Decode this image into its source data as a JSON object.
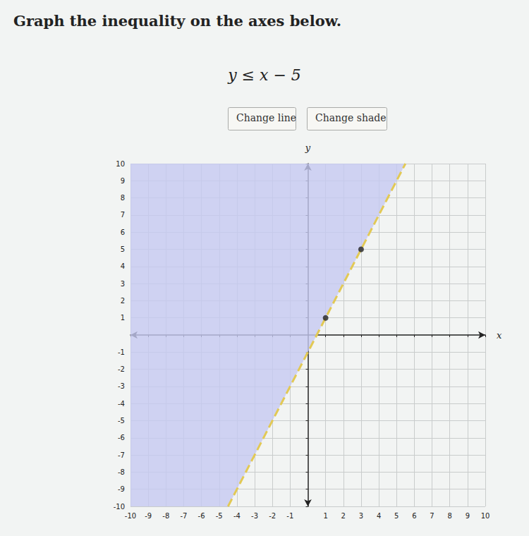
{
  "chart_data": {
    "type": "line",
    "title": "Graph the inequality on the axes below.",
    "subtitle": "y ≤ x − 5",
    "annotations": [
      "Change line",
      "Change shade"
    ],
    "xlabel": "x",
    "ylabel": "y",
    "xlim": [
      -10,
      10
    ],
    "ylim": [
      -10,
      10
    ],
    "xticks": [
      -10,
      -9,
      -8,
      -7,
      -6,
      -5,
      -4,
      -3,
      -2,
      -1,
      1,
      2,
      3,
      4,
      5,
      6,
      7,
      8,
      9,
      10
    ],
    "yticks": [
      -10,
      -9,
      -8,
      -7,
      -6,
      -5,
      -4,
      -3,
      -2,
      -1,
      1,
      2,
      3,
      4,
      5,
      6,
      7,
      8,
      9,
      10
    ],
    "grid": true,
    "series": [
      {
        "type": "area",
        "color": "#c5c9f1",
        "x": [
          -10,
          -4.5,
          5.5,
          -10
        ],
        "values": [
          -10,
          -10,
          10,
          10
        ]
      },
      {
        "type": "line",
        "color": "#e2c955",
        "line_style": "dashed",
        "x": [
          -4.5,
          5.5
        ],
        "values": [
          -10,
          10
        ]
      },
      {
        "type": "scatter",
        "color": "#222222",
        "marker": "circle",
        "x": [
          1,
          3
        ],
        "values": [
          1,
          5
        ]
      }
    ]
  }
}
